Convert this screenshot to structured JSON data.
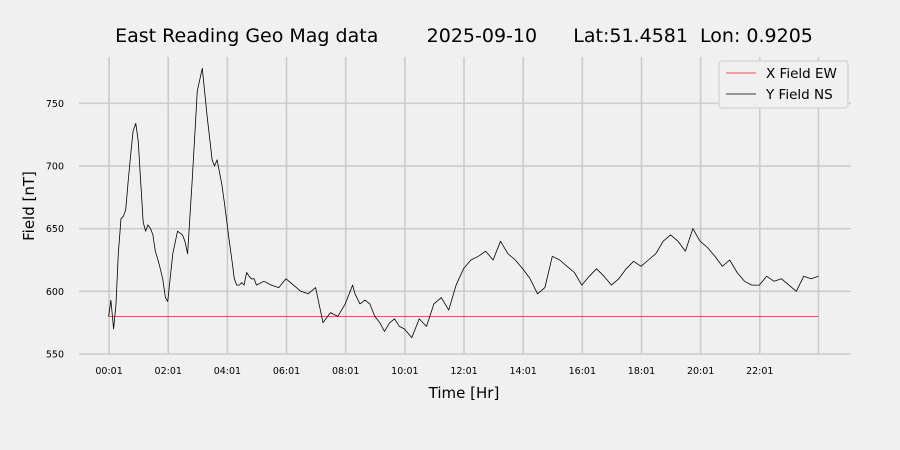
{
  "chart_data": {
    "type": "line",
    "title": "East Reading Geo Mag data        2025-09-10      Lat:51.4581  Lon: 0.9205",
    "xlabel": "Time  [Hr]",
    "ylabel": "Field  [nT]",
    "x_unit": "hours",
    "xlim": [
      -1.0,
      25.1
    ],
    "ylim": [
      550,
      787
    ],
    "x_ticks": [
      {
        "x": 0.0167,
        "label": "00:01"
      },
      {
        "x": 2.0167,
        "label": "02:01"
      },
      {
        "x": 4.0167,
        "label": "04:01"
      },
      {
        "x": 6.0167,
        "label": "06:01"
      },
      {
        "x": 8.0167,
        "label": "08:01"
      },
      {
        "x": 10.0167,
        "label": "10:01"
      },
      {
        "x": 12.0167,
        "label": "12:01"
      },
      {
        "x": 14.0167,
        "label": "14:01"
      },
      {
        "x": 16.0167,
        "label": "16:01"
      },
      {
        "x": 18.0167,
        "label": "18:01"
      },
      {
        "x": 20.0167,
        "label": "20:01"
      },
      {
        "x": 22.0167,
        "label": "22:01"
      },
      {
        "x": 24.0,
        "label": ""
      }
    ],
    "y_ticks": [
      550,
      600,
      650,
      700,
      750
    ],
    "grid": true,
    "legend": "top-right",
    "series": [
      {
        "name": "X Field EW",
        "color": "#d62728",
        "x": [
          0.0,
          24.0
        ],
        "values": [
          580,
          580
        ]
      },
      {
        "name": "Y Field NS",
        "color": "#000000",
        "x": [
          0.0,
          0.08,
          0.17,
          0.25,
          0.33,
          0.42,
          0.5,
          0.58,
          0.67,
          0.75,
          0.83,
          0.92,
          1.0,
          1.08,
          1.17,
          1.25,
          1.33,
          1.42,
          1.5,
          1.58,
          1.67,
          1.75,
          1.83,
          1.92,
          2.0,
          2.17,
          2.33,
          2.5,
          2.58,
          2.67,
          2.83,
          3.0,
          3.17,
          3.33,
          3.5,
          3.58,
          3.67,
          3.75,
          3.83,
          3.92,
          4.0,
          4.08,
          4.17,
          4.25,
          4.33,
          4.42,
          4.5,
          4.58,
          4.67,
          4.75,
          4.83,
          4.92,
          5.0,
          5.25,
          5.5,
          5.75,
          6.0,
          6.25,
          6.5,
          6.75,
          7.0,
          7.25,
          7.5,
          7.75,
          8.0,
          8.17,
          8.25,
          8.33,
          8.5,
          8.67,
          8.83,
          9.0,
          9.17,
          9.33,
          9.5,
          9.67,
          9.83,
          10.0,
          10.25,
          10.5,
          10.75,
          11.0,
          11.25,
          11.5,
          11.75,
          12.0,
          12.25,
          12.5,
          12.75,
          13.0,
          13.25,
          13.5,
          13.75,
          14.0,
          14.25,
          14.5,
          14.75,
          15.0,
          15.25,
          15.5,
          15.75,
          16.0,
          16.25,
          16.5,
          16.75,
          17.0,
          17.25,
          17.5,
          17.75,
          18.0,
          18.25,
          18.5,
          18.75,
          19.0,
          19.25,
          19.5,
          19.75,
          20.0,
          20.25,
          20.5,
          20.75,
          21.0,
          21.25,
          21.5,
          21.75,
          22.0,
          22.25,
          22.5,
          22.75,
          23.0,
          23.25,
          23.5,
          23.75,
          24.0
        ],
        "values": [
          580,
          593,
          570,
          590,
          630,
          658,
          660,
          665,
          690,
          710,
          728,
          734,
          720,
          690,
          655,
          648,
          653,
          650,
          645,
          632,
          625,
          618,
          610,
          595,
          592,
          630,
          648,
          645,
          640,
          630,
          690,
          760,
          778,
          740,
          705,
          700,
          705,
          695,
          685,
          670,
          655,
          640,
          625,
          610,
          605,
          605,
          607,
          605,
          615,
          612,
          610,
          610,
          605,
          608,
          605,
          603,
          610,
          605,
          600,
          598,
          603,
          575,
          583,
          580,
          590,
          600,
          605,
          598,
          590,
          593,
          590,
          580,
          575,
          568,
          575,
          578,
          572,
          570,
          563,
          578,
          572,
          590,
          595,
          585,
          605,
          618,
          625,
          628,
          632,
          625,
          640,
          630,
          625,
          618,
          610,
          598,
          603,
          628,
          625,
          620,
          615,
          605,
          612,
          618,
          612,
          605,
          610,
          618,
          624,
          620,
          625,
          630,
          640,
          645,
          640,
          632,
          650,
          640,
          635,
          628,
          620,
          625,
          615,
          608,
          605,
          605,
          612,
          608,
          610,
          605,
          600,
          612,
          610,
          612
        ]
      }
    ]
  }
}
